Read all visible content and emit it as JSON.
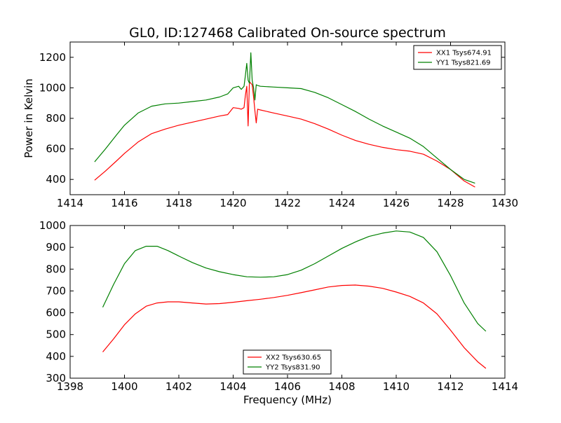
{
  "chart_data": [
    {
      "type": "line",
      "title": "GL0, ID:127468 Calibrated On-source spectrum",
      "xlabel": "",
      "ylabel": "Power in Kelvin",
      "xlim": [
        1414,
        1430
      ],
      "ylim": [
        300,
        1300
      ],
      "xticks": [
        "1414",
        "1416",
        "1418",
        "1420",
        "1422",
        "1424",
        "1426",
        "1428",
        "1430"
      ],
      "yticks": [
        "400",
        "600",
        "800",
        "1000",
        "1200"
      ],
      "grid": false,
      "legend_position": "top-right",
      "series": [
        {
          "name": "XX1 Tsys674.91",
          "color": "#ff0000",
          "x": [
            1414.9,
            1415.3,
            1415.7,
            1416.0,
            1416.5,
            1417.0,
            1417.5,
            1418.0,
            1418.5,
            1419.0,
            1419.5,
            1419.8,
            1420.0,
            1420.2,
            1420.3,
            1420.4,
            1420.45,
            1420.5,
            1420.55,
            1420.6,
            1420.65,
            1420.7,
            1420.75,
            1420.8,
            1420.85,
            1420.9,
            1421.0,
            1421.5,
            1422.0,
            1422.5,
            1423.0,
            1423.5,
            1424.0,
            1424.5,
            1425.0,
            1425.5,
            1426.0,
            1426.5,
            1427.0,
            1427.5,
            1428.0,
            1428.5,
            1428.9
          ],
          "values": [
            395,
            455,
            520,
            570,
            645,
            700,
            730,
            755,
            775,
            795,
            815,
            825,
            870,
            865,
            860,
            870,
            950,
            1010,
            750,
            1040,
            1030,
            1020,
            940,
            850,
            770,
            860,
            855,
            835,
            815,
            795,
            765,
            730,
            690,
            655,
            630,
            610,
            595,
            585,
            565,
            520,
            465,
            390,
            350
          ]
        },
        {
          "name": "YY1 Tsys821.69",
          "color": "#008000",
          "x": [
            1414.9,
            1415.3,
            1415.7,
            1416.0,
            1416.5,
            1417.0,
            1417.5,
            1418.0,
            1418.5,
            1419.0,
            1419.5,
            1419.8,
            1420.0,
            1420.2,
            1420.3,
            1420.4,
            1420.45,
            1420.5,
            1420.55,
            1420.6,
            1420.65,
            1420.7,
            1420.75,
            1420.8,
            1420.85,
            1420.9,
            1421.0,
            1421.5,
            1422.0,
            1422.5,
            1423.0,
            1423.5,
            1424.0,
            1424.5,
            1425.0,
            1425.5,
            1426.0,
            1426.5,
            1427.0,
            1427.5,
            1428.0,
            1428.5,
            1428.9
          ],
          "values": [
            515,
            600,
            690,
            755,
            835,
            880,
            895,
            900,
            910,
            920,
            940,
            960,
            1000,
            1010,
            990,
            1010,
            1080,
            1160,
            1050,
            1030,
            1230,
            1050,
            1000,
            920,
            1020,
            1015,
            1010,
            1005,
            1000,
            995,
            970,
            935,
            890,
            845,
            795,
            750,
            710,
            670,
            615,
            540,
            465,
            400,
            375
          ]
        }
      ]
    },
    {
      "type": "line",
      "title": "",
      "xlabel": "Frequency (MHz)",
      "ylabel": "",
      "xlim": [
        1398,
        1414
      ],
      "ylim": [
        300,
        1000
      ],
      "xticks": [
        "1398",
        "1400",
        "1402",
        "1404",
        "1406",
        "1408",
        "1410",
        "1412",
        "1414"
      ],
      "yticks": [
        "300",
        "400",
        "500",
        "600",
        "700",
        "800",
        "900",
        "1000"
      ],
      "grid": false,
      "legend_position": "lower-center",
      "series": [
        {
          "name": "XX2 Tsys630.65",
          "color": "#ff0000",
          "x": [
            1399.2,
            1399.6,
            1400.0,
            1400.4,
            1400.8,
            1401.2,
            1401.6,
            1402.0,
            1402.5,
            1403.0,
            1403.5,
            1404.0,
            1404.5,
            1405.0,
            1405.5,
            1406.0,
            1406.5,
            1407.0,
            1407.5,
            1408.0,
            1408.5,
            1409.0,
            1409.5,
            1410.0,
            1410.5,
            1411.0,
            1411.5,
            1412.0,
            1412.5,
            1413.0,
            1413.3
          ],
          "values": [
            420,
            480,
            545,
            595,
            630,
            645,
            650,
            650,
            645,
            640,
            642,
            648,
            655,
            662,
            670,
            680,
            692,
            705,
            718,
            725,
            727,
            722,
            712,
            695,
            675,
            645,
            595,
            520,
            440,
            375,
            345
          ]
        },
        {
          "name": "YY2 Tsys831.90",
          "color": "#008000",
          "x": [
            1399.2,
            1399.6,
            1400.0,
            1400.4,
            1400.8,
            1401.2,
            1401.6,
            1402.0,
            1402.5,
            1403.0,
            1403.5,
            1404.0,
            1404.5,
            1405.0,
            1405.5,
            1406.0,
            1406.5,
            1407.0,
            1407.5,
            1408.0,
            1408.5,
            1409.0,
            1409.5,
            1410.0,
            1410.5,
            1411.0,
            1411.5,
            1412.0,
            1412.5,
            1413.0,
            1413.3
          ],
          "values": [
            625,
            730,
            825,
            885,
            905,
            905,
            885,
            860,
            830,
            805,
            788,
            775,
            765,
            763,
            765,
            775,
            795,
            825,
            860,
            895,
            925,
            950,
            965,
            975,
            970,
            945,
            880,
            770,
            645,
            550,
            515
          ]
        }
      ]
    }
  ]
}
